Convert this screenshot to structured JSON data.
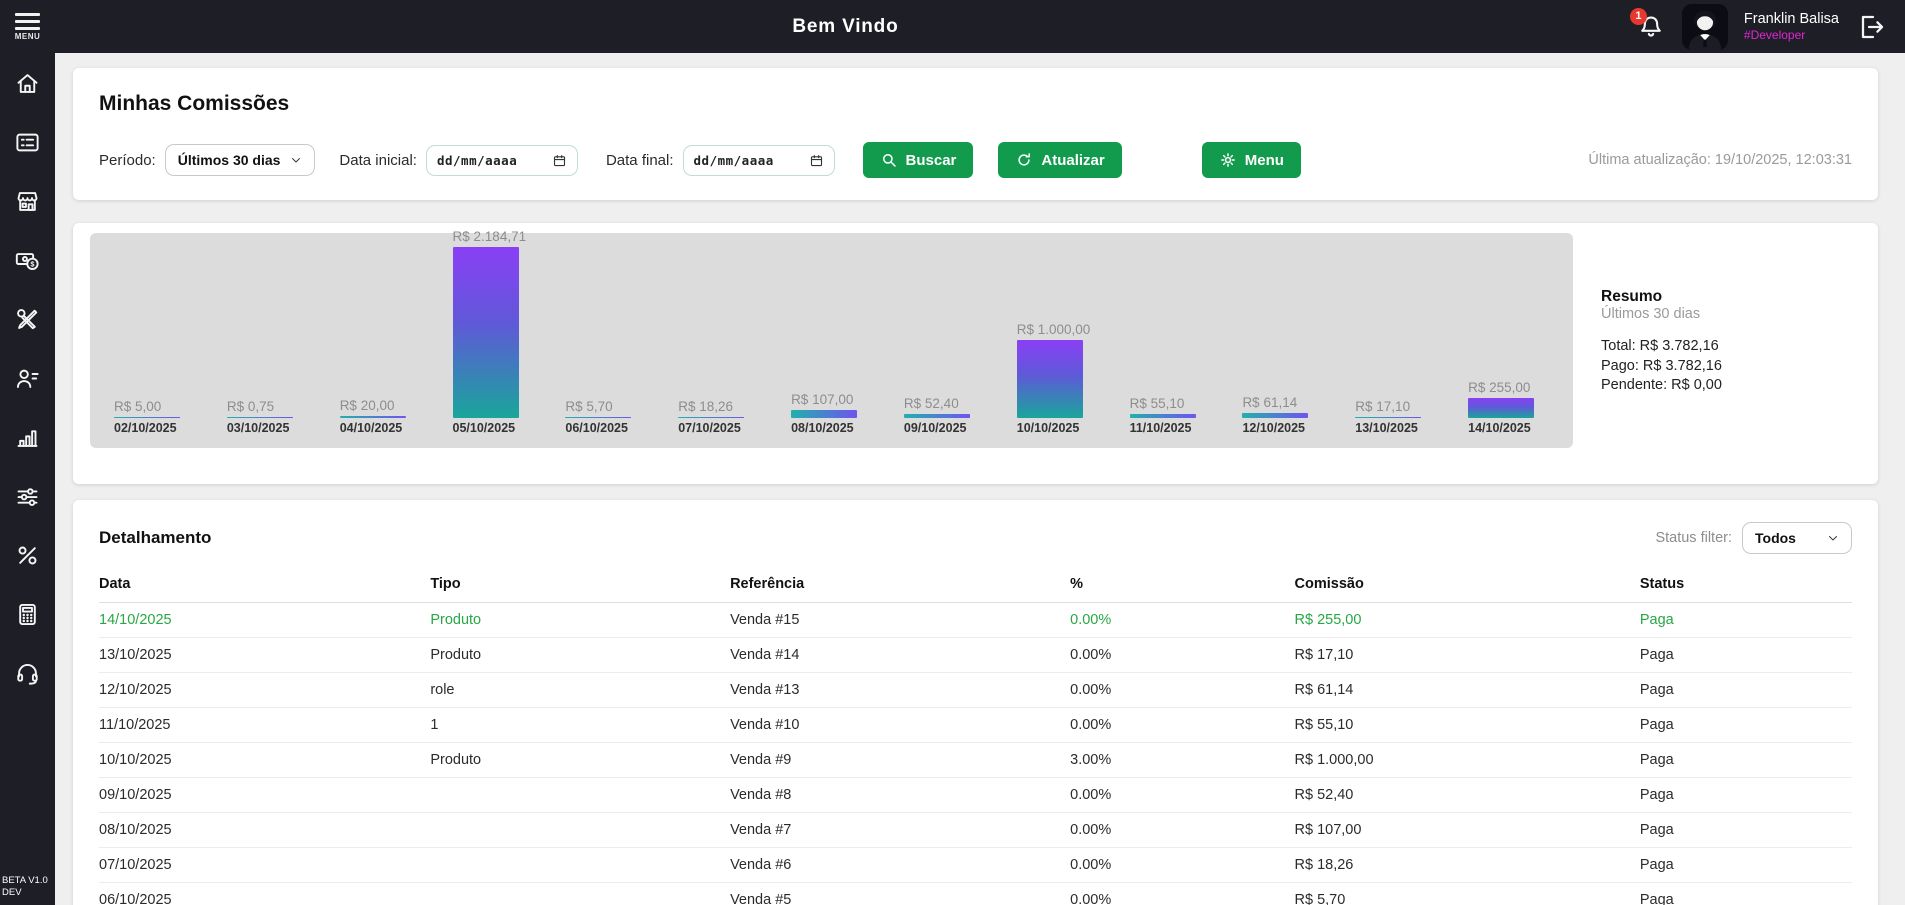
{
  "topbar": {
    "menu_label": "MENU",
    "title": "Bem Vindo",
    "notification_count": "1",
    "user_name": "Franklin Balisa",
    "user_role": "#Developer"
  },
  "sidebar": {
    "icons": [
      "home",
      "orders-list",
      "store",
      "payments",
      "tools",
      "users",
      "reports-chart",
      "settings-sliders",
      "commissions-percent",
      "calculator",
      "support-headset"
    ],
    "version_line1": "BETA V1.0",
    "version_line2": "DEV"
  },
  "filters": {
    "heading": "Minhas Comissões",
    "period_label": "Período:",
    "period_value": "Últimos 30 dias",
    "date_start_label": "Data inicial:",
    "date_end_label": "Data final:",
    "date_placeholder": "dd/mm/aaaa",
    "buscar_label": "Buscar",
    "atualizar_label": "Atualizar",
    "menu_label": "Menu",
    "last_update": "Última atualização: 19/10/2025, 12:03:31"
  },
  "chart_data": {
    "type": "bar",
    "title": "",
    "categories": [
      "02/10/2025",
      "03/10/2025",
      "04/10/2025",
      "05/10/2025",
      "06/10/2025",
      "07/10/2025",
      "08/10/2025",
      "09/10/2025",
      "10/10/2025",
      "11/10/2025",
      "12/10/2025",
      "13/10/2025",
      "14/10/2025"
    ],
    "values": [
      5.0,
      0.75,
      20.0,
      2184.71,
      5.7,
      18.26,
      107.0,
      52.4,
      1000.0,
      55.1,
      61.14,
      17.1,
      255.0
    ],
    "value_labels": [
      "R$ 5,00",
      "R$ 0,75",
      "R$ 20,00",
      "R$ 2.184,71",
      "R$ 5,70",
      "R$ 18,26",
      "R$ 107,00",
      "R$ 52,40",
      "R$ 1.000,00",
      "R$ 55,10",
      "R$ 61,14",
      "R$ 17,10",
      "R$ 255,00"
    ],
    "xlabel": "",
    "ylabel": "",
    "ylim": [
      0,
      2184.71
    ],
    "grid": false,
    "legend": false
  },
  "resumo": {
    "title": "Resumo",
    "subtitle": "Últimos 30 dias",
    "total": "Total: R$ 3.782,16",
    "pago": "Pago: R$ 3.782,16",
    "pendente": "Pendente: R$ 0,00"
  },
  "details": {
    "heading": "Detalhamento",
    "status_filter_label": "Status filter:",
    "status_filter_value": "Todos",
    "columns": [
      "Data",
      "Tipo",
      "Referência",
      "%",
      "Comissão",
      "Status"
    ],
    "rows": [
      {
        "cells": [
          "14/10/2025",
          "Produto",
          "Venda #15",
          "0.00%",
          "R$ 255,00",
          "Paga"
        ],
        "highlight": true
      },
      {
        "cells": [
          "13/10/2025",
          "Produto",
          "Venda #14",
          "0.00%",
          "R$ 17,10",
          "Paga"
        ],
        "highlight": false
      },
      {
        "cells": [
          "12/10/2025",
          "role",
          "Venda #13",
          "0.00%",
          "R$ 61,14",
          "Paga"
        ],
        "highlight": false
      },
      {
        "cells": [
          "11/10/2025",
          "1",
          "Venda #10",
          "0.00%",
          "R$ 55,10",
          "Paga"
        ],
        "highlight": false
      },
      {
        "cells": [
          "10/10/2025",
          "Produto",
          "Venda #9",
          "3.00%",
          "R$ 1.000,00",
          "Paga"
        ],
        "highlight": false
      },
      {
        "cells": [
          "09/10/2025",
          "",
          "Venda #8",
          "0.00%",
          "R$ 52,40",
          "Paga"
        ],
        "highlight": false
      },
      {
        "cells": [
          "08/10/2025",
          "",
          "Venda #7",
          "0.00%",
          "R$ 107,00",
          "Paga"
        ],
        "highlight": false
      },
      {
        "cells": [
          "07/10/2025",
          "",
          "Venda #6",
          "0.00%",
          "R$ 18,26",
          "Paga"
        ],
        "highlight": false
      },
      {
        "cells": [
          "06/10/2025",
          "",
          "Venda #5",
          "0.00%",
          "R$ 5,70",
          "Paga"
        ],
        "highlight": false
      }
    ]
  },
  "colors": {
    "topbar_bg": "#1e1f26",
    "accent_green": "#129a4d",
    "highlight_green": "#28a745",
    "role_magenta": "#e326d3",
    "badge_red": "#e8372f",
    "bar_purple": "#8a3ff5",
    "bar_teal": "#19a69b",
    "chart_bg": "#dcdcdc"
  }
}
